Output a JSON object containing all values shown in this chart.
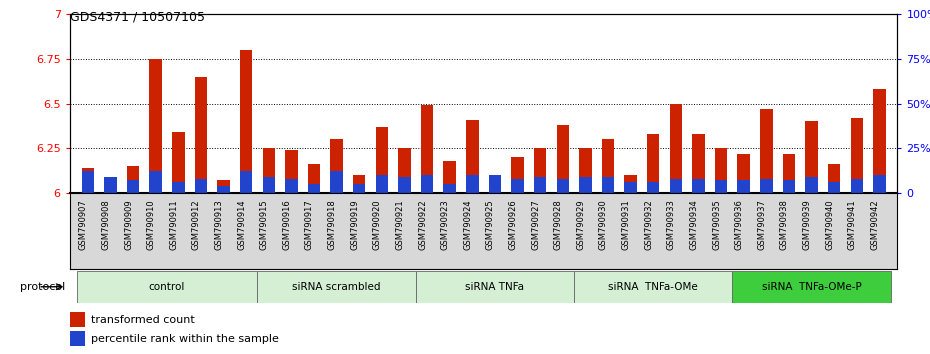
{
  "title": "GDS4371 / 10507105",
  "samples": [
    "GSM790907",
    "GSM790908",
    "GSM790909",
    "GSM790910",
    "GSM790911",
    "GSM790912",
    "GSM790913",
    "GSM790914",
    "GSM790915",
    "GSM790916",
    "GSM790917",
    "GSM790918",
    "GSM790919",
    "GSM790920",
    "GSM790921",
    "GSM790922",
    "GSM790923",
    "GSM790924",
    "GSM790925",
    "GSM790926",
    "GSM790927",
    "GSM790928",
    "GSM790929",
    "GSM790930",
    "GSM790931",
    "GSM790932",
    "GSM790933",
    "GSM790934",
    "GSM790935",
    "GSM790936",
    "GSM790937",
    "GSM790938",
    "GSM790939",
    "GSM790940",
    "GSM790941",
    "GSM790942"
  ],
  "red_values": [
    6.14,
    6.08,
    6.15,
    6.75,
    6.34,
    6.65,
    6.07,
    6.8,
    6.25,
    6.24,
    6.16,
    6.3,
    6.1,
    6.37,
    6.25,
    6.49,
    6.18,
    6.41,
    6.06,
    6.2,
    6.25,
    6.38,
    6.25,
    6.3,
    6.1,
    6.33,
    6.5,
    6.33,
    6.25,
    6.22,
    6.47,
    6.22,
    6.4,
    6.16,
    6.42,
    6.58
  ],
  "blue_fractions": [
    0.12,
    0.09,
    0.07,
    0.12,
    0.06,
    0.08,
    0.04,
    0.12,
    0.09,
    0.08,
    0.05,
    0.12,
    0.05,
    0.1,
    0.09,
    0.1,
    0.05,
    0.1,
    0.1,
    0.08,
    0.09,
    0.08,
    0.09,
    0.09,
    0.06,
    0.06,
    0.08,
    0.08,
    0.07,
    0.07,
    0.08,
    0.07,
    0.09,
    0.06,
    0.08,
    0.1
  ],
  "protocol_groups": [
    {
      "label": "control",
      "start": 0,
      "end": 7,
      "color": "#d4efd4"
    },
    {
      "label": "siRNA scrambled",
      "start": 8,
      "end": 14,
      "color": "#d4efd4"
    },
    {
      "label": "siRNA TNFa",
      "start": 15,
      "end": 21,
      "color": "#d4efd4"
    },
    {
      "label": "siRNA  TNFa-OMe",
      "start": 22,
      "end": 28,
      "color": "#d4efd4"
    },
    {
      "label": "siRNA  TNFa-OMe-P",
      "start": 29,
      "end": 35,
      "color": "#3dcd3d"
    }
  ],
  "ylim": [
    6.0,
    7.0
  ],
  "yticks": [
    6.0,
    6.25,
    6.5,
    6.75,
    7.0
  ],
  "ytick_labels": [
    "6",
    "6.25",
    "6.5",
    "6.75",
    "7"
  ],
  "right_yticks": [
    0,
    25,
    50,
    75,
    100
  ],
  "right_ytick_labels": [
    "0",
    "25%",
    "50%",
    "75%",
    "100%"
  ],
  "bar_color_red": "#cc2200",
  "bar_color_blue": "#2244cc",
  "bar_width": 0.55,
  "xtick_bg": "#d8d8d8",
  "legend_red": "transformed count",
  "legend_blue": "percentile rank within the sample"
}
